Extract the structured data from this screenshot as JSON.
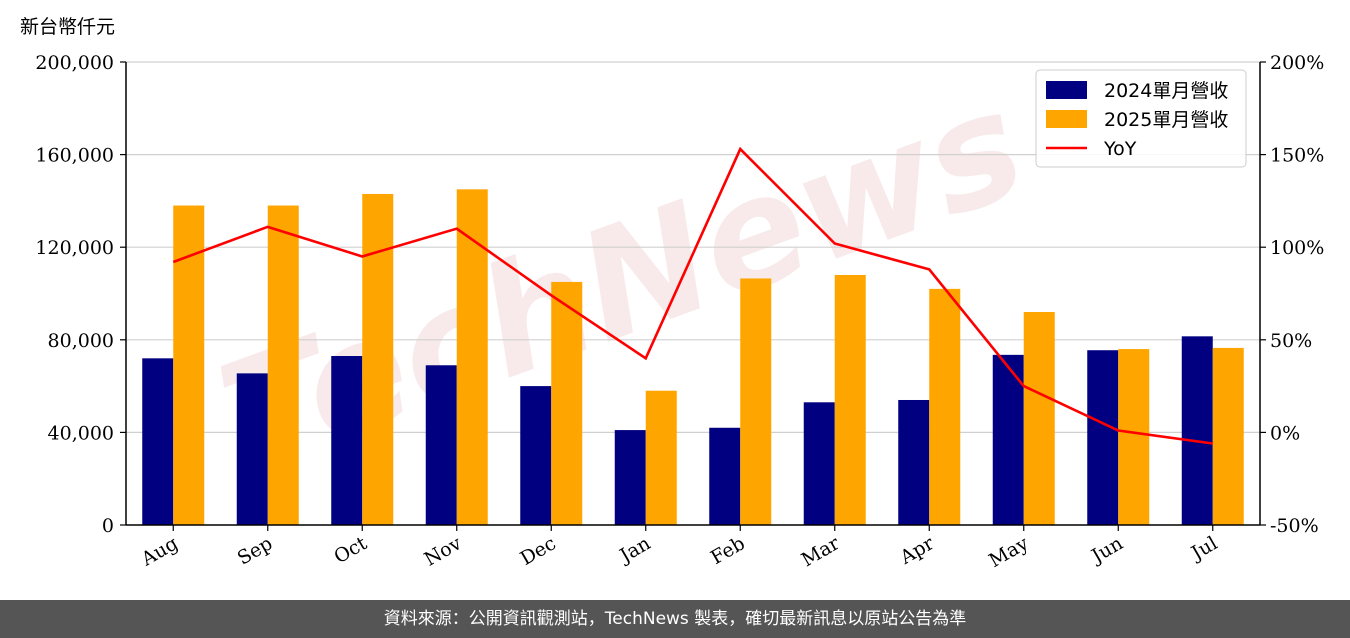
{
  "chart_data": {
    "type": "bar",
    "categories": [
      "Aug",
      "Sep",
      "Oct",
      "Nov",
      "Dec",
      "Jan",
      "Feb",
      "Mar",
      "Apr",
      "May",
      "Jun",
      "Jul"
    ],
    "series": [
      {
        "name": "2024單月營收",
        "kind": "bar",
        "axis": "left",
        "color": "#000080",
        "values": [
          72000,
          65500,
          73000,
          69000,
          60000,
          41000,
          42000,
          53000,
          54000,
          73500,
          75500,
          81500
        ]
      },
      {
        "name": "2025單月營收",
        "kind": "bar",
        "axis": "left",
        "color": "#FFA500",
        "values": [
          138000,
          138000,
          143000,
          145000,
          105000,
          58000,
          106500,
          108000,
          102000,
          92000,
          76000,
          76500
        ]
      },
      {
        "name": "YoY",
        "kind": "line",
        "axis": "right",
        "color": "#FF0000",
        "values": [
          92,
          111,
          95,
          110,
          74,
          40,
          153,
          102,
          88,
          25,
          1,
          -6
        ]
      }
    ],
    "ylabel": "新台幣仟元",
    "ylim": [
      0,
      200000
    ],
    "yticks": [
      "0",
      "40,000",
      "80,000",
      "120,000",
      "160,000",
      "200,000"
    ],
    "ytick_values": [
      0,
      40000,
      80000,
      120000,
      160000,
      200000
    ],
    "y2lim": [
      -50,
      200
    ],
    "y2ticks": [
      "-50%",
      "0%",
      "50%",
      "100%",
      "150%",
      "200%"
    ],
    "y2tick_values": [
      -50,
      0,
      50,
      100,
      150,
      200
    ],
    "grid": true,
    "legend_position": "top-right"
  },
  "watermark": "TechNews",
  "footer": {
    "text": "資料來源：公開資訊觀測站，TechNews 製表，確切最新訊息以原站公告為準"
  }
}
